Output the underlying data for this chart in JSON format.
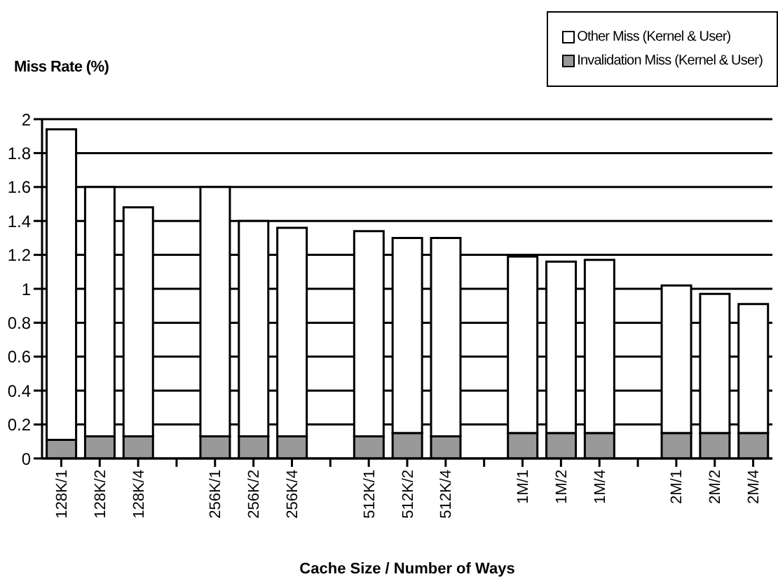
{
  "chart_data": {
    "type": "bar",
    "stacked": true,
    "ylabel": "Miss Rate (%)",
    "xlabel": "Cache Size / Number of Ways",
    "categories": [
      "128K/1",
      "128K/2",
      "128K/4",
      null,
      "256K/1",
      "256K/2",
      "256K/4",
      null,
      "512K/1",
      "512K/2",
      "512K/4",
      null,
      "1M/1",
      "1M/2",
      "1M/4",
      null,
      "2M/1",
      "2M/2",
      "2M/4"
    ],
    "series": [
      {
        "name": "Invalidation Miss (Kernel & User)",
        "color": "#999999",
        "values": [
          0.11,
          0.13,
          0.13,
          null,
          0.13,
          0.13,
          0.13,
          null,
          0.13,
          0.15,
          0.13,
          null,
          0.15,
          0.15,
          0.15,
          null,
          0.15,
          0.15,
          0.15
        ]
      },
      {
        "name": "Other Miss (Kernel & User)",
        "color": "#ffffff",
        "values": [
          1.83,
          1.47,
          1.35,
          null,
          1.47,
          1.27,
          1.23,
          null,
          1.21,
          1.15,
          1.17,
          null,
          1.04,
          1.01,
          1.02,
          null,
          0.87,
          0.82,
          0.76
        ]
      }
    ],
    "ylim": [
      0,
      2
    ],
    "yticks": [
      0,
      0.2,
      0.4,
      0.6,
      0.8,
      1,
      1.2,
      1.4,
      1.6,
      1.8,
      2
    ],
    "grid": "y",
    "legend": "top right"
  }
}
